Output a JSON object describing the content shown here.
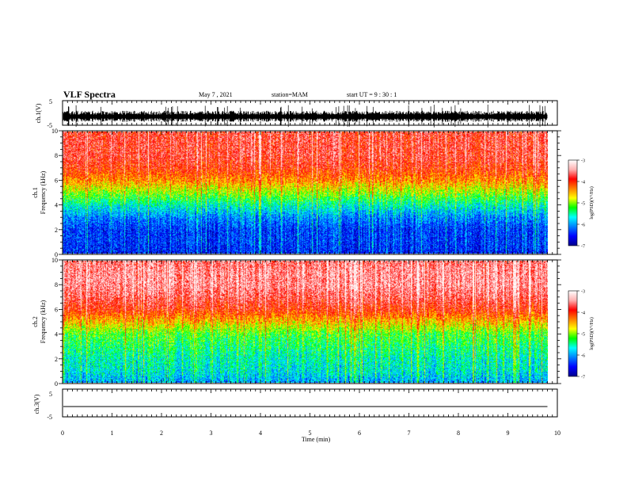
{
  "header": {
    "title": "VLF Spectra",
    "date": "May 7 , 2021",
    "station": "station=MAM",
    "start": "start UT =  9 : 30 : 1"
  },
  "xaxis": {
    "label": "Time (min)",
    "ticks": [
      "0",
      "1",
      "2",
      "3",
      "4",
      "5",
      "6",
      "7",
      "8",
      "9",
      "10"
    ]
  },
  "ch1_wave": {
    "ylabel": "ch.1(V)",
    "ticks": [
      "5",
      "-5"
    ]
  },
  "ch3_wave": {
    "ylabel": "ch.3(V)",
    "ticks": [
      "5",
      "-5"
    ]
  },
  "spec1": {
    "ylabel_line1": "ch.1",
    "ylabel_line2": "Frequency (kHz)",
    "ticks": [
      "10",
      "8",
      "6",
      "4",
      "2",
      "0"
    ]
  },
  "spec2": {
    "ylabel_line1": "ch.2",
    "ylabel_line2": "Frequency (kHz)",
    "ticks": [
      "10",
      "8",
      "6",
      "4",
      "2",
      "0"
    ]
  },
  "colorbar": {
    "label": "log(PSD)(V²/Hz)",
    "ticks": [
      "-3",
      "-4",
      "-5",
      "-6",
      "-7"
    ],
    "colors": [
      "#00008b",
      "#0000ff",
      "#0080ff",
      "#00ffff",
      "#00ff00",
      "#ffff00",
      "#ff8000",
      "#ff0000",
      "#ffb0b0",
      "#ffffff"
    ]
  },
  "chart_data": [
    {
      "type": "line",
      "title": "VLF Spectra",
      "xlabel": "Time (min)",
      "ylabel": "ch.1(V)",
      "xlim": [
        0,
        10
      ],
      "ylim": [
        -5,
        5
      ],
      "series": [
        {
          "x": [
            0,
            9.8
          ],
          "y": [
            -1.5,
            -1.5
          ]
        }
      ]
    },
    {
      "type": "heatmap",
      "xlabel": "Time (min)",
      "ylabel": "Frequency (kHz)",
      "xlim": [
        0,
        10
      ],
      "ylim": [
        0,
        10
      ],
      "data_xmax": 9.8,
      "zlabel": "log(PSD)(V²/Hz)",
      "zlim": [
        -7,
        -3
      ],
      "log_psd_by_freq": {
        "freq_khz": [
          0,
          1,
          2,
          3,
          4,
          5,
          6,
          7,
          8,
          9,
          10
        ],
        "value": [
          -6.5,
          -6.4,
          -6.4,
          -6.1,
          -5.6,
          -5.0,
          -4.4,
          -4.0,
          -3.8,
          -3.8,
          -3.8
        ]
      }
    },
    {
      "type": "heatmap",
      "xlabel": "Time (min)",
      "ylabel": "Frequency (kHz)",
      "xlim": [
        0,
        10
      ],
      "ylim": [
        0,
        10
      ],
      "data_xmax": 9.8,
      "zlabel": "log(PSD)(V²/Hz)",
      "zlim": [
        -7,
        -3
      ],
      "log_psd_by_freq": {
        "freq_khz": [
          0,
          1,
          2,
          3,
          4,
          5,
          6,
          7,
          8,
          9,
          10
        ],
        "value": [
          -6.0,
          -5.7,
          -5.6,
          -5.4,
          -5.2,
          -4.6,
          -4.0,
          -3.7,
          -3.5,
          -3.5,
          -3.6
        ]
      }
    },
    {
      "type": "line",
      "xlabel": "Time (min)",
      "ylabel": "ch.3(V)",
      "xlim": [
        0,
        10
      ],
      "ylim": [
        -5,
        5
      ],
      "series": [
        {
          "x": [
            0,
            9.8
          ],
          "y": [
            -1.5,
            -1.5
          ]
        }
      ]
    }
  ]
}
